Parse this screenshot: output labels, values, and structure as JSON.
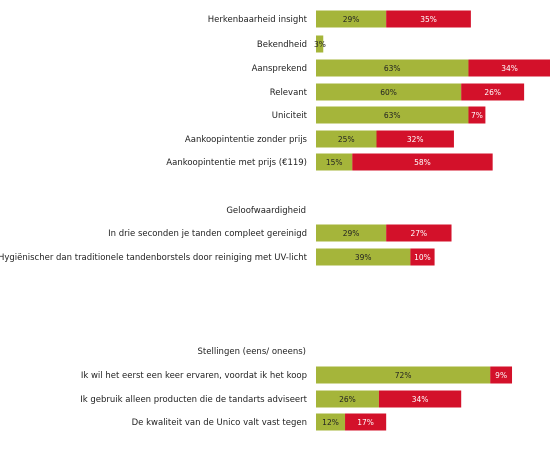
{
  "chart_data": {
    "type": "bar",
    "orientation": "horizontal",
    "stacked": true,
    "colors": {
      "positive": "#a5b53a",
      "negative": "#d3112a"
    },
    "groups": [
      {
        "title": "",
        "rows": [
          {
            "label": "Herkenbaarheid insight",
            "values": [
              29,
              35
            ],
            "value_labels": [
              "29%",
              "35%"
            ]
          },
          {
            "label": "Bekendheid",
            "values": [
              3,
              0
            ],
            "value_labels": [
              "3%",
              ""
            ]
          },
          {
            "label": "Aansprekend",
            "values": [
              63,
              34
            ],
            "value_labels": [
              "63%",
              "34%"
            ]
          },
          {
            "label": "Relevant",
            "values": [
              60,
              26
            ],
            "value_labels": [
              "60%",
              "26%"
            ]
          },
          {
            "label": "Uniciteit",
            "values": [
              63,
              7
            ],
            "value_labels": [
              "63%",
              "7%"
            ]
          },
          {
            "label": "Aankoopintentie zonder prijs",
            "values": [
              25,
              32
            ],
            "value_labels": [
              "25%",
              "32%"
            ]
          },
          {
            "label": "Aankoopintentie met prijs (€119)",
            "values": [
              15,
              58
            ],
            "value_labels": [
              "15%",
              "58%"
            ]
          }
        ]
      },
      {
        "title": "Geloofwaardigheid",
        "rows": [
          {
            "label": "In drie seconden je tanden compleet gereinigd",
            "values": [
              29,
              27
            ],
            "value_labels": [
              "29%",
              "27%"
            ]
          },
          {
            "label": "Hygiënischer dan traditionele tandenborstels door reiniging met UV-licht",
            "values": [
              39,
              10
            ],
            "value_labels": [
              "39%",
              "10%"
            ]
          }
        ]
      },
      {
        "title": "Stellingen (eens/ oneens)",
        "rows": [
          {
            "label": "Ik wil het eerst een keer ervaren, voordat ik het koop",
            "values": [
              72,
              9
            ],
            "value_labels": [
              "72%",
              "9%"
            ]
          },
          {
            "label": "Ik gebruik alleen producten die de tandarts adviseert",
            "values": [
              26,
              34
            ],
            "value_labels": [
              "26%",
              "34%"
            ]
          },
          {
            "label": "De kwaliteit van de Unico valt vast tegen",
            "values": [
              12,
              17
            ],
            "value_labels": [
              "12%",
              "17%"
            ]
          }
        ]
      }
    ]
  }
}
